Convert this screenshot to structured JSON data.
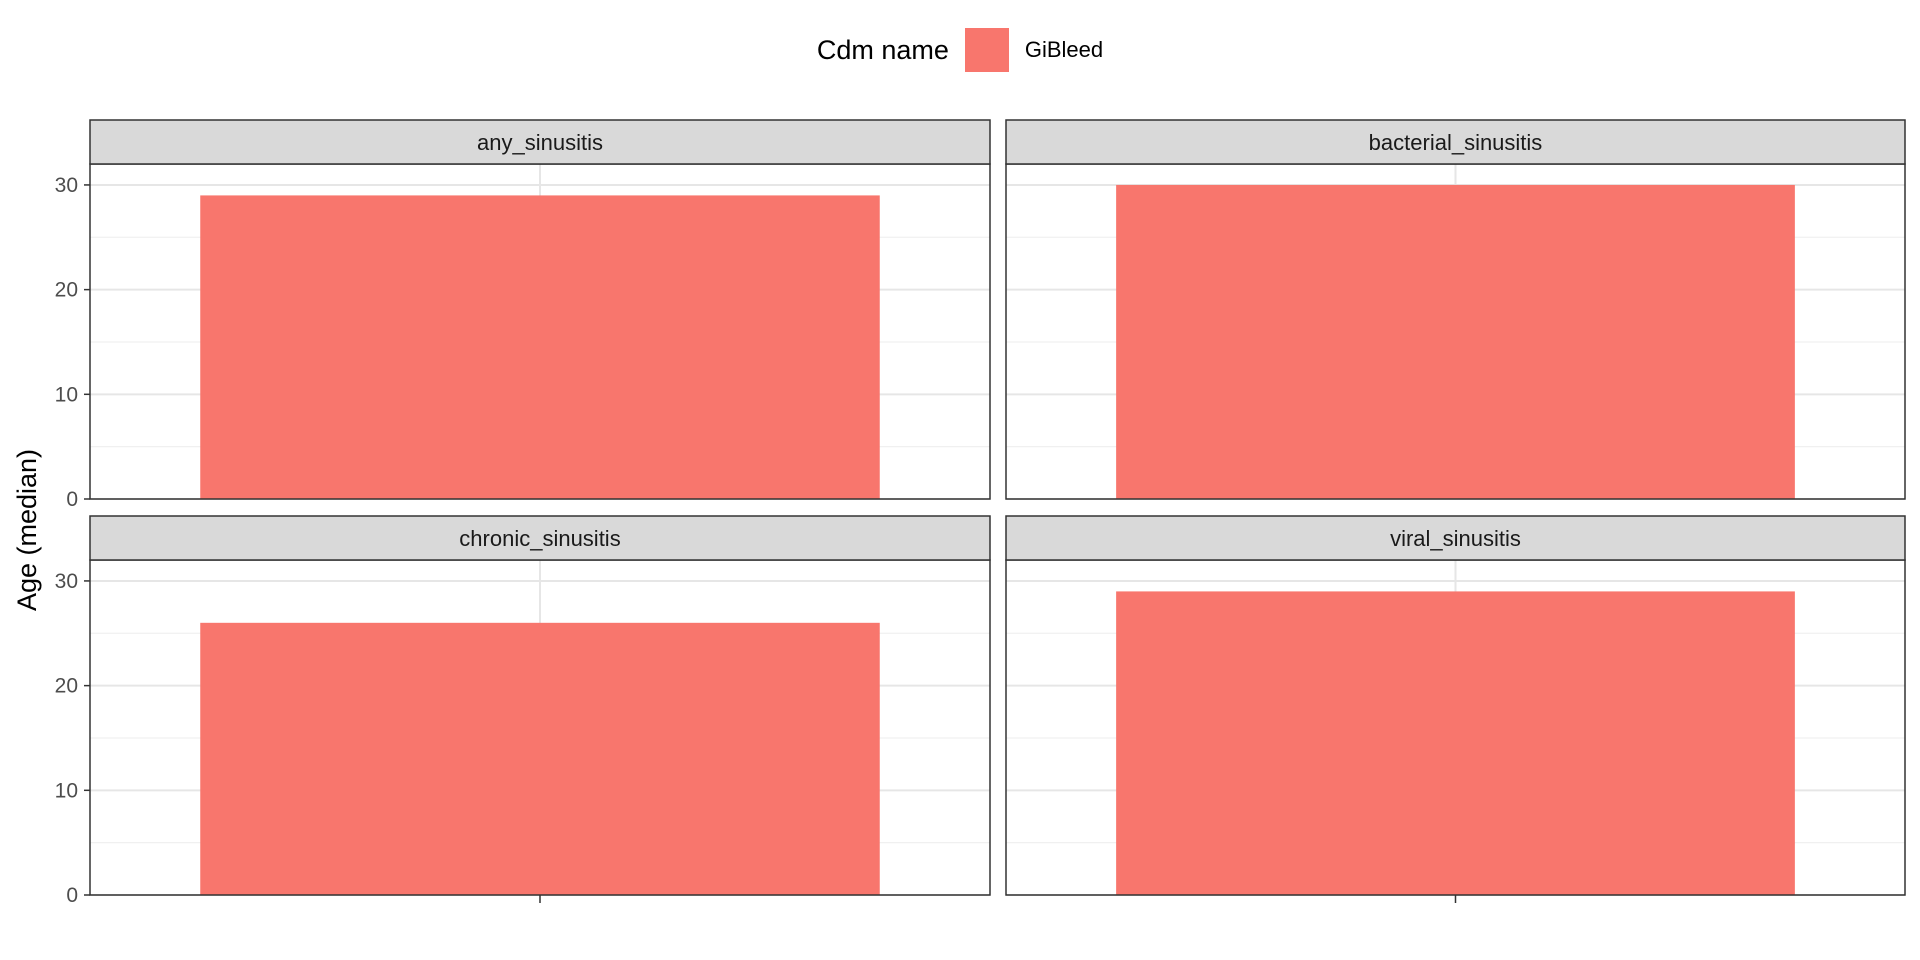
{
  "chart_data": {
    "type": "bar",
    "legend": {
      "title": "Cdm name",
      "entries": [
        {
          "label": "GiBleed",
          "color": "#F8766D"
        }
      ],
      "position": "top"
    },
    "ylabel": "Age (median)",
    "xlabel": "",
    "ylim": [
      0,
      32
    ],
    "yticks": [
      0,
      10,
      20,
      30
    ],
    "grid": true,
    "facets": [
      {
        "title": "any_sinusitis",
        "series": [
          {
            "name": "GiBleed",
            "value": 29
          }
        ]
      },
      {
        "title": "bacterial_sinusitis",
        "series": [
          {
            "name": "GiBleed",
            "value": 30
          }
        ]
      },
      {
        "title": "chronic_sinusitis",
        "series": [
          {
            "name": "GiBleed",
            "value": 26
          }
        ]
      },
      {
        "title": "viral_sinusitis",
        "series": [
          {
            "name": "GiBleed",
            "value": 29
          }
        ]
      }
    ]
  }
}
